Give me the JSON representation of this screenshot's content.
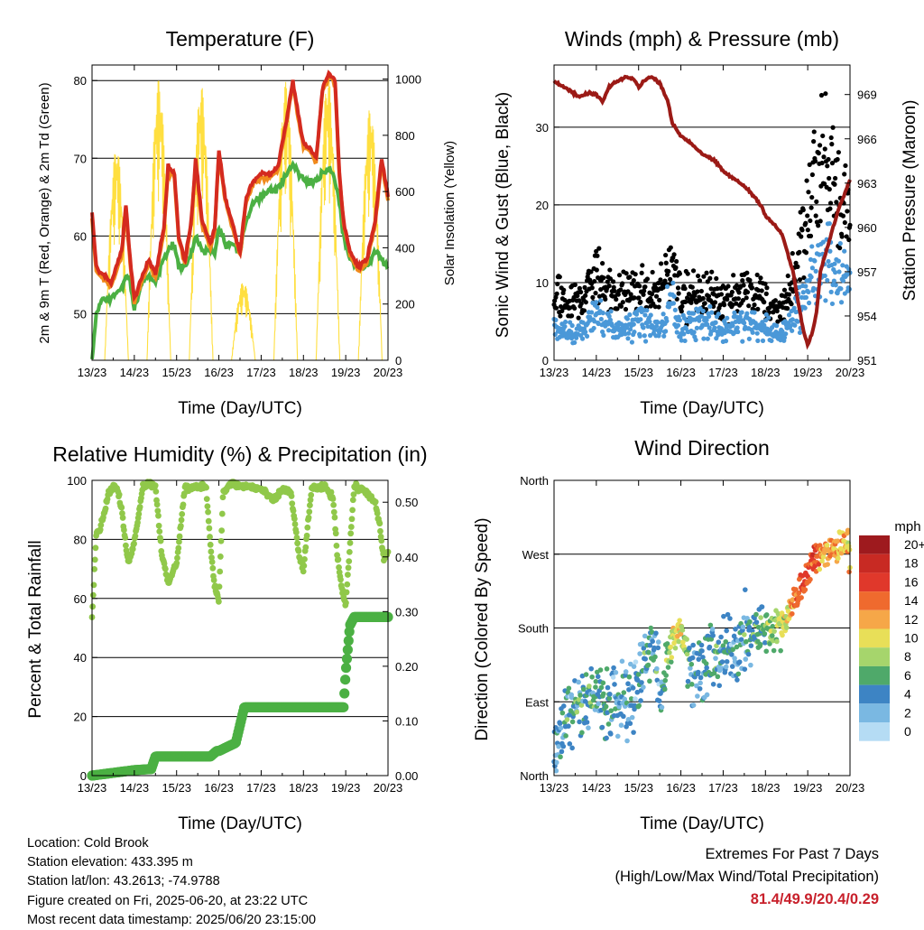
{
  "colors": {
    "temp_9m": "#d42a1f",
    "temp_2m": "#f08a1c",
    "dewpoint": "#4bb043",
    "solar": "#ffdf40",
    "wind": "#4a98d8",
    "gust": "#000000",
    "pressure": "#9b1a16",
    "rh": "#90c84a",
    "precip": "#4bb043",
    "extremes": "#c8202b"
  },
  "x_tick_labels": [
    "13/23",
    "14/23",
    "15/23",
    "16/23",
    "17/23",
    "18/23",
    "19/23",
    "20/23"
  ],
  "footer": {
    "location": "Location: Cold Brook",
    "elevation": "Station elevation: 433.395 m",
    "latlon": "Station lat/lon: 43.2613; -74.9788",
    "created": "Figure created on Fri, 2025-06-20, at 23:22 UTC",
    "recent": "Most recent data timestamp: 2025/06/20 23:15:00",
    "extremes_title": "Extremes For Past 7 Days",
    "extremes_subtitle": "(High/Low/Max Wind/Total Precipitation)",
    "extremes_values": "81.4/49.9/20.4/0.29"
  },
  "chart_data": [
    {
      "type": "line",
      "title": "Temperature (F)",
      "xlabel": "Time (Day/UTC)",
      "ylabel": "2m & 9m T (Red, Orange) & 2m Td (Green)",
      "ylabel_right": "Solar Insolation (Yellow)",
      "xlim": [
        13,
        20
      ],
      "ylim": [
        44,
        82
      ],
      "ylim_right": [
        0,
        1050
      ],
      "yticks": [
        50,
        60,
        70,
        80
      ],
      "yticks_right": [
        0,
        200,
        400,
        600,
        800,
        1000
      ],
      "grid": true,
      "x": [
        13.0,
        13.1,
        13.25,
        13.45,
        13.7,
        13.8,
        13.9,
        14.0,
        14.2,
        14.35,
        14.5,
        14.7,
        14.8,
        14.95,
        15.05,
        15.2,
        15.35,
        15.45,
        15.6,
        15.8,
        15.9,
        16.0,
        16.15,
        16.3,
        16.5,
        16.65,
        16.8,
        17.0,
        17.2,
        17.4,
        17.6,
        17.75,
        17.9,
        18.0,
        18.2,
        18.3,
        18.45,
        18.6,
        18.75,
        18.85,
        18.95,
        19.1,
        19.3,
        19.5,
        19.7,
        19.85,
        20.0
      ],
      "series": [
        {
          "name": "9m T",
          "values": [
            63,
            56,
            55,
            54,
            58,
            64,
            57,
            52,
            55,
            57,
            55,
            61,
            69,
            68,
            60,
            57,
            62,
            70,
            62,
            59,
            61,
            71,
            65,
            62,
            58,
            65,
            67,
            68,
            68,
            69,
            75,
            80,
            75,
            72,
            71,
            70,
            79,
            81,
            80,
            68,
            62,
            58,
            56,
            57,
            62,
            70,
            65
          ]
        },
        {
          "name": "2m T",
          "values": [
            62,
            55.5,
            54.5,
            53.5,
            57.5,
            63.5,
            56.5,
            51.5,
            54.5,
            56.5,
            54.5,
            60.5,
            68.5,
            67.5,
            59.5,
            56.5,
            61.5,
            69.5,
            61.5,
            58.5,
            60.5,
            70.5,
            64.5,
            61.5,
            57.5,
            64.5,
            66.5,
            67.5,
            67.5,
            68.5,
            74.5,
            79.5,
            74.5,
            71.5,
            70.5,
            69.5,
            78.5,
            80.5,
            79.5,
            67.5,
            61.5,
            57.5,
            55.5,
            56.5,
            61.5,
            69.5,
            64.5
          ]
        },
        {
          "name": "2m Td",
          "values": [
            44,
            50,
            52,
            52,
            53,
            55,
            54,
            51,
            54,
            55,
            54,
            57,
            58,
            59,
            56,
            56,
            58,
            60,
            58,
            58,
            58,
            61,
            59,
            59,
            58,
            62,
            64,
            65,
            66,
            66,
            68,
            69,
            68,
            67,
            67,
            67,
            68,
            69,
            67,
            64,
            60,
            57,
            56,
            56,
            58,
            57,
            56
          ]
        }
      ],
      "solar": {
        "name": "Solar Insolation",
        "days": [
          13.58,
          14.58,
          15.58,
          16.58,
          17.58,
          18.58,
          19.58
        ],
        "peaks": [
          760,
          1000,
          980,
          280,
          990,
          1010,
          900
        ]
      }
    },
    {
      "type": "scatter",
      "title": "Winds (mph) & Pressure (mb)",
      "xlabel": "Time (Day/UTC)",
      "ylabel": "Sonic Wind & Gust (Blue, Black)",
      "ylabel_right": "Station Pressure (Maroon)",
      "xlim": [
        13,
        20
      ],
      "ylim": [
        0,
        38
      ],
      "ylim_right": [
        951,
        971
      ],
      "yticks": [
        0,
        10,
        20,
        30
      ],
      "yticks_right": [
        951,
        954,
        957,
        960,
        963,
        966,
        969
      ],
      "grid": true,
      "pressure": {
        "x": [
          13.0,
          13.2,
          13.4,
          13.6,
          13.8,
          14.0,
          14.15,
          14.3,
          14.5,
          14.7,
          14.9,
          15.0,
          15.15,
          15.3,
          15.5,
          15.7,
          15.8,
          16.0,
          16.2,
          16.5,
          16.8,
          17.0,
          17.3,
          17.5,
          17.7,
          17.9,
          18.0,
          18.2,
          18.4,
          18.5,
          18.65,
          18.8,
          18.9,
          19.0,
          19.1,
          19.2,
          19.3,
          19.5,
          19.7,
          19.9,
          20.0
        ],
        "values": [
          969.9,
          969.6,
          969.2,
          968.8,
          969.1,
          969.0,
          968.5,
          969.5,
          969.9,
          970.2,
          970.0,
          969.5,
          970.0,
          970.2,
          969.8,
          968.5,
          967.0,
          966.2,
          965.8,
          965.0,
          964.5,
          963.8,
          963.2,
          962.8,
          962.2,
          961.5,
          960.8,
          960.2,
          959.5,
          958.5,
          957.0,
          954.5,
          953.0,
          952.0,
          952.8,
          954.0,
          957.0,
          959.0,
          961.0,
          962.5,
          963.3
        ]
      },
      "wind_mean": {
        "x": [
          13.0,
          13.5,
          14.0,
          14.5,
          15.0,
          15.5,
          15.8,
          16.0,
          16.5,
          17.0,
          17.5,
          18.0,
          18.3,
          18.6,
          18.9,
          19.2,
          19.5,
          19.8,
          20.0
        ],
        "values": [
          4,
          3,
          6,
          4,
          5,
          4,
          8,
          4,
          5,
          4,
          5,
          4,
          3,
          5,
          8,
          12,
          13,
          11,
          10
        ]
      },
      "gust_mean": {
        "x": [
          13.0,
          13.5,
          14.0,
          14.5,
          15.0,
          15.5,
          15.8,
          16.0,
          16.5,
          17.0,
          17.5,
          18.0,
          18.3,
          18.6,
          18.9,
          19.2,
          19.5,
          19.8,
          20.0
        ],
        "values": [
          8,
          7,
          11,
          8,
          9,
          8,
          14,
          8,
          9,
          8,
          9,
          8,
          6,
          9,
          16,
          24,
          25,
          21,
          18
        ]
      }
    },
    {
      "type": "line",
      "title": "Relative Humidity (%) & Precipitation (in)",
      "xlabel": "Time (Day/UTC)",
      "ylabel": "Percent & Total Rainfall",
      "xlim": [
        13,
        20
      ],
      "ylim": [
        0,
        100
      ],
      "ylim_right": [
        0,
        0.54
      ],
      "yticks": [
        0,
        20,
        40,
        60,
        80,
        100
      ],
      "yticks_right": [
        0.0,
        0.1,
        0.2,
        0.3,
        0.4,
        0.5
      ],
      "grid": true,
      "rh": {
        "x": [
          13.0,
          13.1,
          13.2,
          13.4,
          13.5,
          13.6,
          13.7,
          13.85,
          14.0,
          14.2,
          14.35,
          14.5,
          14.65,
          14.8,
          15.0,
          15.2,
          15.3,
          15.5,
          15.7,
          15.8,
          15.9,
          16.0,
          16.1,
          16.3,
          16.5,
          16.7,
          17.0,
          17.3,
          17.5,
          17.7,
          17.8,
          17.9,
          18.0,
          18.2,
          18.35,
          18.5,
          18.7,
          18.8,
          18.9,
          19.0,
          19.2,
          19.5,
          19.7,
          19.8,
          19.9,
          20.0
        ],
        "values": [
          54,
          82,
          84,
          96,
          98,
          97,
          90,
          72,
          79,
          98,
          99,
          98,
          75,
          65,
          72,
          98,
          97,
          98,
          98,
          78,
          64,
          60,
          96,
          99,
          98,
          98,
          97,
          93,
          97,
          96,
          85,
          74,
          70,
          98,
          97,
          98,
          94,
          75,
          64,
          58,
          98,
          96,
          92,
          85,
          73,
          76
        ]
      },
      "precip": {
        "x": [
          13.0,
          13.5,
          14.0,
          14.4,
          14.5,
          15.0,
          15.5,
          15.8,
          15.95,
          16.0,
          16.4,
          16.6,
          17.0,
          17.5,
          18.0,
          18.5,
          18.95,
          19.0,
          19.1,
          19.2,
          19.3,
          20.0
        ],
        "values": [
          0.0,
          0.005,
          0.01,
          0.012,
          0.035,
          0.035,
          0.035,
          0.035,
          0.045,
          0.045,
          0.06,
          0.125,
          0.125,
          0.125,
          0.125,
          0.125,
          0.125,
          0.19,
          0.275,
          0.29,
          0.29,
          0.29
        ]
      }
    },
    {
      "type": "scatter",
      "title": "Wind Direction",
      "xlabel": "Time (Day/UTC)",
      "ylabel": "Direction (Colored By Speed)",
      "xlim": [
        13,
        20
      ],
      "ylim": [
        0,
        360
      ],
      "ytick_labels": [
        "North",
        "East",
        "South",
        "West",
        "North"
      ],
      "grid": true,
      "colorbar": {
        "title": "mph",
        "labels": [
          "20+",
          "18",
          "16",
          "14",
          "12",
          "10",
          "8",
          "6",
          "4",
          "2",
          "0"
        ],
        "colors": [
          "#9e1a1e",
          "#c82a23",
          "#e0382b",
          "#ef6a2e",
          "#f6a748",
          "#e8df58",
          "#a6d56c",
          "#4fa96a",
          "#3d84c4",
          "#7ab8e2",
          "#b5dcf4"
        ]
      },
      "direction_trend": {
        "x": [
          13.0,
          13.2,
          13.5,
          14.0,
          14.5,
          15.0,
          15.3,
          15.5,
          15.8,
          16.0,
          16.3,
          16.6,
          17.0,
          17.3,
          17.6,
          17.9,
          18.2,
          18.5,
          18.7,
          18.9,
          19.1,
          19.3,
          19.6,
          19.9,
          20.0
        ],
        "values": [
          20,
          70,
          90,
          100,
          90,
          105,
          170,
          100,
          165,
          180,
          120,
          140,
          150,
          160,
          170,
          175,
          180,
          190,
          220,
          230,
          260,
          270,
          275,
          280,
          270
        ],
        "speeds": [
          3,
          3,
          5,
          5,
          3,
          4,
          5,
          3,
          9,
          10,
          4,
          5,
          4,
          4,
          4,
          6,
          8,
          10,
          14,
          15,
          16,
          13,
          12,
          12,
          11
        ]
      }
    }
  ]
}
